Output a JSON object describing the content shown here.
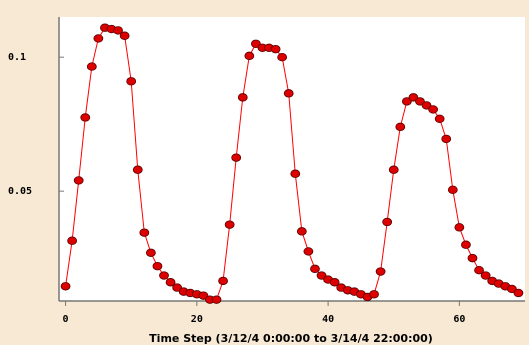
{
  "chart_data": {
    "type": "line",
    "xlabel": "Time Step (3/12/4 0:00:00 to 3/14/4 22:00:00)",
    "ylabel": "",
    "xlim": [
      -1,
      70
    ],
    "ylim": [
      0.009,
      0.115
    ],
    "x_ticks": [
      0,
      20,
      40,
      60
    ],
    "y_ticks": [
      0.05,
      0.1
    ],
    "x_tick_labels": [
      "0",
      "20",
      "40",
      "60"
    ],
    "y_tick_labels": [
      "0.05",
      "0.1"
    ],
    "grid": false,
    "colors": {
      "line": "#ff0000",
      "marker": "#dd0000",
      "marker_edge": "#550000",
      "background": "#f8e9d4",
      "plot_bg": "#ffffff"
    },
    "series": [
      {
        "x": [
          0,
          1,
          2,
          3,
          4,
          5,
          6,
          7,
          8,
          9,
          10,
          11,
          12,
          13,
          14,
          15,
          16,
          17,
          18,
          19,
          20,
          21,
          22,
          23,
          24,
          25,
          26,
          27,
          28,
          29,
          30,
          31,
          32,
          33,
          34,
          35,
          36,
          37,
          38,
          39,
          40,
          41,
          42,
          43,
          44,
          45,
          46,
          47,
          48,
          49,
          50,
          51,
          52,
          53,
          54,
          55,
          56,
          57,
          58,
          59,
          60,
          61,
          62,
          63,
          64,
          65,
          66,
          67,
          68,
          69
        ],
        "y": [
          0.0145,
          0.0315,
          0.054,
          0.0775,
          0.0965,
          0.107,
          0.111,
          0.1105,
          0.11,
          0.108,
          0.091,
          0.058,
          0.0345,
          0.027,
          0.022,
          0.0185,
          0.016,
          0.014,
          0.0125,
          0.012,
          0.0115,
          0.011,
          0.0095,
          0.0095,
          0.0165,
          0.0375,
          0.0625,
          0.085,
          0.1005,
          0.105,
          0.1035,
          0.1035,
          0.103,
          0.1,
          0.0865,
          0.0565,
          0.035,
          0.0275,
          0.021,
          0.0185,
          0.017,
          0.016,
          0.014,
          0.013,
          0.0125,
          0.0115,
          0.0105,
          0.0115,
          0.02,
          0.0385,
          0.058,
          0.074,
          0.0835,
          0.085,
          0.0835,
          0.082,
          0.0805,
          0.077,
          0.0695,
          0.0505,
          0.0365,
          0.03,
          0.025,
          0.0205,
          0.0185,
          0.0165,
          0.0155,
          0.0145,
          0.0135,
          0.012
        ]
      }
    ]
  }
}
